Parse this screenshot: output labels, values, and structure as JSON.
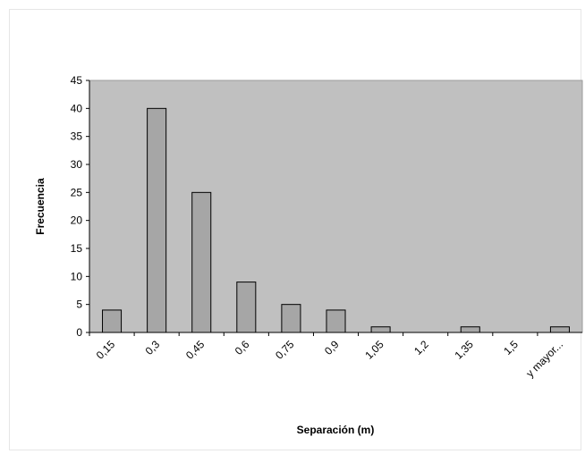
{
  "chart_data": {
    "type": "bar",
    "title": "",
    "xlabel": "Separación (m)",
    "ylabel": "Frecuencia",
    "categories": [
      "0,15",
      "0,3",
      "0,45",
      "0,6",
      "0,75",
      "0,9",
      "1,05",
      "1,2",
      "1,35",
      "1,5",
      "y mayor..."
    ],
    "values": [
      4,
      40,
      25,
      9,
      5,
      4,
      1,
      0,
      1,
      0,
      1
    ],
    "ylim": [
      0,
      45
    ],
    "yticks": [
      0,
      5,
      10,
      15,
      20,
      25,
      30,
      35,
      40,
      45
    ],
    "grid": false,
    "legend": "none",
    "colors": {
      "plot_background": "#c0c0c0",
      "bar_fill": "#a6a6a6",
      "bar_stroke": "#000000",
      "axis": "#000000"
    }
  }
}
